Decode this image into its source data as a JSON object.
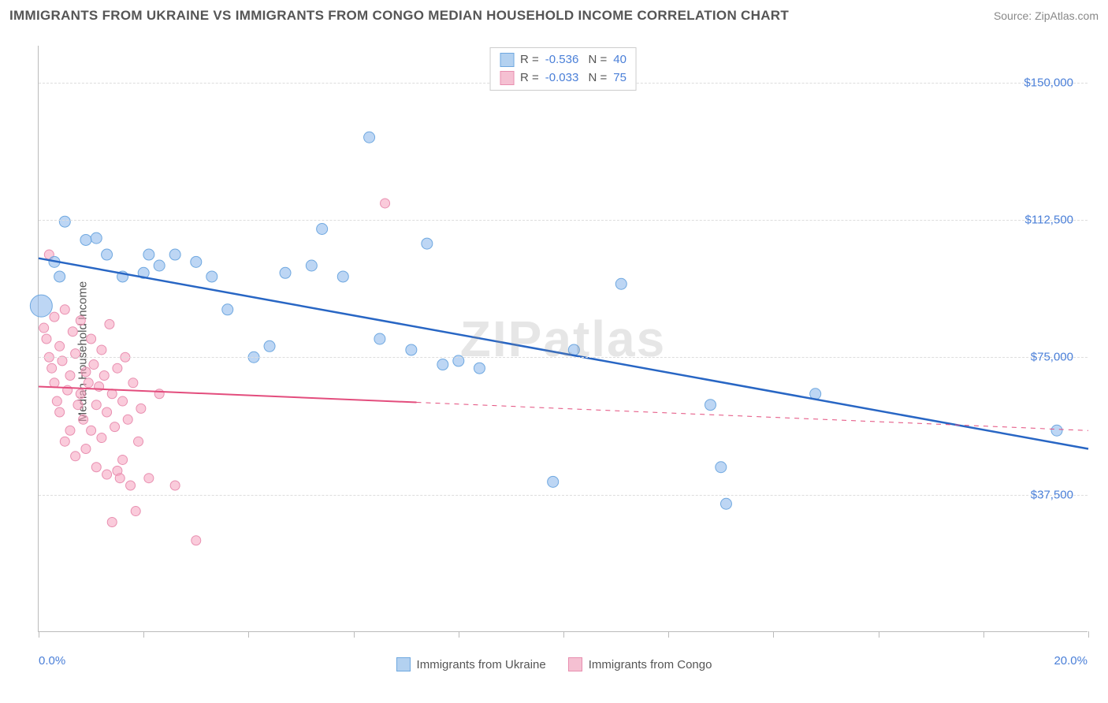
{
  "header": {
    "title": "IMMIGRANTS FROM UKRAINE VS IMMIGRANTS FROM CONGO MEDIAN HOUSEHOLD INCOME CORRELATION CHART",
    "source": "Source: ZipAtlas.com"
  },
  "watermark": "ZIPatlas",
  "chart": {
    "type": "scatter",
    "ylabel": "Median Household Income",
    "xlim": [
      0,
      20
    ],
    "ylim": [
      0,
      160000
    ],
    "x_ticks": [
      0,
      2,
      4,
      6,
      8,
      10,
      12,
      14,
      16,
      18,
      20
    ],
    "x_min_label": "0.0%",
    "x_max_label": "20.0%",
    "y_gridlines": [
      37500,
      75000,
      112500,
      150000
    ],
    "y_tick_labels": [
      "$37,500",
      "$75,000",
      "$112,500",
      "$150,000"
    ],
    "background_color": "#ffffff",
    "grid_color": "#dddddd",
    "axis_color": "#bbbbbb",
    "title_fontsize": 17,
    "label_fontsize": 15,
    "tick_color": "#4a7fd8",
    "series": [
      {
        "name": "Immigrants from Ukraine",
        "color_fill": "rgba(135,180,235,0.55)",
        "color_stroke": "#6fa8e0",
        "swatch_fill": "#b3d1f0",
        "swatch_border": "#6fa8e0",
        "trend_color": "#2866c4",
        "trend_width": 2.5,
        "trend_dash_after_x": null,
        "R": "-0.536",
        "N": "40",
        "trend": {
          "x1": 0,
          "y1": 102000,
          "x2": 20,
          "y2": 50000
        },
        "points": [
          {
            "x": 0.05,
            "y": 89000,
            "r": 14
          },
          {
            "x": 0.5,
            "y": 112000,
            "r": 7
          },
          {
            "x": 0.3,
            "y": 101000,
            "r": 7
          },
          {
            "x": 0.4,
            "y": 97000,
            "r": 7
          },
          {
            "x": 0.9,
            "y": 107000,
            "r": 7
          },
          {
            "x": 1.1,
            "y": 107500,
            "r": 7
          },
          {
            "x": 1.3,
            "y": 103000,
            "r": 7
          },
          {
            "x": 1.6,
            "y": 97000,
            "r": 7
          },
          {
            "x": 2.0,
            "y": 98000,
            "r": 7
          },
          {
            "x": 2.1,
            "y": 103000,
            "r": 7
          },
          {
            "x": 2.3,
            "y": 100000,
            "r": 7
          },
          {
            "x": 2.6,
            "y": 103000,
            "r": 7
          },
          {
            "x": 3.0,
            "y": 101000,
            "r": 7
          },
          {
            "x": 3.3,
            "y": 97000,
            "r": 7
          },
          {
            "x": 3.6,
            "y": 88000,
            "r": 7
          },
          {
            "x": 4.1,
            "y": 75000,
            "r": 7
          },
          {
            "x": 4.4,
            "y": 78000,
            "r": 7
          },
          {
            "x": 4.7,
            "y": 98000,
            "r": 7
          },
          {
            "x": 5.2,
            "y": 100000,
            "r": 7
          },
          {
            "x": 5.4,
            "y": 110000,
            "r": 7
          },
          {
            "x": 5.8,
            "y": 97000,
            "r": 7
          },
          {
            "x": 6.3,
            "y": 135000,
            "r": 7
          },
          {
            "x": 6.5,
            "y": 80000,
            "r": 7
          },
          {
            "x": 7.1,
            "y": 77000,
            "r": 7
          },
          {
            "x": 7.4,
            "y": 106000,
            "r": 7
          },
          {
            "x": 7.7,
            "y": 73000,
            "r": 7
          },
          {
            "x": 8.0,
            "y": 74000,
            "r": 7
          },
          {
            "x": 8.4,
            "y": 72000,
            "r": 7
          },
          {
            "x": 9.8,
            "y": 41000,
            "r": 7
          },
          {
            "x": 10.2,
            "y": 77000,
            "r": 7
          },
          {
            "x": 11.1,
            "y": 95000,
            "r": 7
          },
          {
            "x": 12.8,
            "y": 62000,
            "r": 7
          },
          {
            "x": 13.0,
            "y": 45000,
            "r": 7
          },
          {
            "x": 13.1,
            "y": 35000,
            "r": 7
          },
          {
            "x": 14.8,
            "y": 65000,
            "r": 7
          },
          {
            "x": 19.4,
            "y": 55000,
            "r": 7
          }
        ]
      },
      {
        "name": "Immigrants from Congo",
        "color_fill": "rgba(245,160,190,0.55)",
        "color_stroke": "#e88fb0",
        "swatch_fill": "#f5c0d2",
        "swatch_border": "#e88fb0",
        "trend_color": "#e34d7d",
        "trend_width": 2,
        "trend_dash_after_x": 7.2,
        "R": "-0.033",
        "N": "75",
        "trend": {
          "x1": 0,
          "y1": 67000,
          "x2": 20,
          "y2": 55000
        },
        "points": [
          {
            "x": 0.1,
            "y": 83000,
            "r": 6
          },
          {
            "x": 0.15,
            "y": 80000,
            "r": 6
          },
          {
            "x": 0.2,
            "y": 103000,
            "r": 6
          },
          {
            "x": 0.2,
            "y": 75000,
            "r": 6
          },
          {
            "x": 0.25,
            "y": 72000,
            "r": 6
          },
          {
            "x": 0.3,
            "y": 68000,
            "r": 6
          },
          {
            "x": 0.3,
            "y": 86000,
            "r": 6
          },
          {
            "x": 0.35,
            "y": 63000,
            "r": 6
          },
          {
            "x": 0.4,
            "y": 78000,
            "r": 6
          },
          {
            "x": 0.4,
            "y": 60000,
            "r": 6
          },
          {
            "x": 0.45,
            "y": 74000,
            "r": 6
          },
          {
            "x": 0.5,
            "y": 52000,
            "r": 6
          },
          {
            "x": 0.5,
            "y": 88000,
            "r": 6
          },
          {
            "x": 0.55,
            "y": 66000,
            "r": 6
          },
          {
            "x": 0.6,
            "y": 70000,
            "r": 6
          },
          {
            "x": 0.6,
            "y": 55000,
            "r": 6
          },
          {
            "x": 0.65,
            "y": 82000,
            "r": 6
          },
          {
            "x": 0.7,
            "y": 76000,
            "r": 6
          },
          {
            "x": 0.7,
            "y": 48000,
            "r": 6
          },
          {
            "x": 0.75,
            "y": 62000,
            "r": 6
          },
          {
            "x": 0.8,
            "y": 85000,
            "r": 6
          },
          {
            "x": 0.8,
            "y": 65000,
            "r": 6
          },
          {
            "x": 0.85,
            "y": 58000,
            "r": 6
          },
          {
            "x": 0.9,
            "y": 71000,
            "r": 6
          },
          {
            "x": 0.9,
            "y": 50000,
            "r": 6
          },
          {
            "x": 0.95,
            "y": 68000,
            "r": 6
          },
          {
            "x": 1.0,
            "y": 80000,
            "r": 6
          },
          {
            "x": 1.0,
            "y": 55000,
            "r": 6
          },
          {
            "x": 1.05,
            "y": 73000,
            "r": 6
          },
          {
            "x": 1.1,
            "y": 45000,
            "r": 6
          },
          {
            "x": 1.1,
            "y": 62000,
            "r": 6
          },
          {
            "x": 1.15,
            "y": 67000,
            "r": 6
          },
          {
            "x": 1.2,
            "y": 77000,
            "r": 6
          },
          {
            "x": 1.2,
            "y": 53000,
            "r": 6
          },
          {
            "x": 1.25,
            "y": 70000,
            "r": 6
          },
          {
            "x": 1.3,
            "y": 43000,
            "r": 6
          },
          {
            "x": 1.3,
            "y": 60000,
            "r": 6
          },
          {
            "x": 1.35,
            "y": 84000,
            "r": 6
          },
          {
            "x": 1.4,
            "y": 65000,
            "r": 6
          },
          {
            "x": 1.4,
            "y": 30000,
            "r": 6
          },
          {
            "x": 1.45,
            "y": 56000,
            "r": 6
          },
          {
            "x": 1.5,
            "y": 72000,
            "r": 6
          },
          {
            "x": 1.5,
            "y": 44000,
            "r": 6
          },
          {
            "x": 1.55,
            "y": 42000,
            "r": 6
          },
          {
            "x": 1.6,
            "y": 63000,
            "r": 6
          },
          {
            "x": 1.6,
            "y": 47000,
            "r": 6
          },
          {
            "x": 1.65,
            "y": 75000,
            "r": 6
          },
          {
            "x": 1.7,
            "y": 58000,
            "r": 6
          },
          {
            "x": 1.75,
            "y": 40000,
            "r": 6
          },
          {
            "x": 1.8,
            "y": 68000,
            "r": 6
          },
          {
            "x": 1.85,
            "y": 33000,
            "r": 6
          },
          {
            "x": 1.9,
            "y": 52000,
            "r": 6
          },
          {
            "x": 1.95,
            "y": 61000,
            "r": 6
          },
          {
            "x": 2.1,
            "y": 42000,
            "r": 6
          },
          {
            "x": 2.3,
            "y": 65000,
            "r": 6
          },
          {
            "x": 2.6,
            "y": 40000,
            "r": 6
          },
          {
            "x": 3.0,
            "y": 25000,
            "r": 6
          },
          {
            "x": 6.6,
            "y": 117000,
            "r": 6
          }
        ]
      }
    ]
  },
  "legend": {
    "series1_label": "Immigrants from Ukraine",
    "series2_label": "Immigrants from Congo"
  }
}
